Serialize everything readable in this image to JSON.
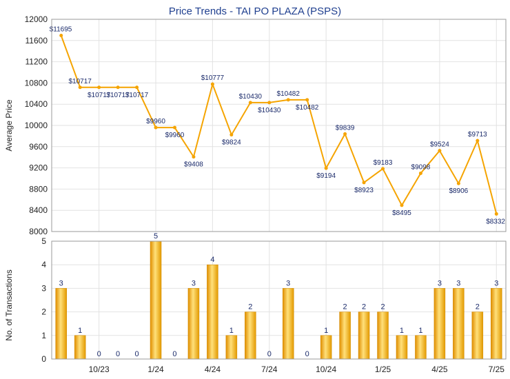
{
  "chart_data": [
    {
      "type": "line",
      "title": "Price Trends - TAI PO PLAZA (PSPS)",
      "ylabel": "Average Price",
      "ylim": [
        8000,
        12000
      ],
      "yticks": [
        8000,
        8400,
        8800,
        9200,
        9600,
        10000,
        10400,
        10800,
        11200,
        11600,
        12000
      ],
      "series": [
        {
          "values": [
            11695,
            10717,
            10717,
            10717,
            10717,
            9960,
            9960,
            9408,
            10777,
            9824,
            10430,
            10430,
            10482,
            10482,
            9194,
            9839,
            8923,
            9183,
            8495,
            9098,
            9524,
            8906,
            9713,
            8332
          ],
          "labels": [
            "$11695",
            "$10717",
            "$10717",
            "$10717",
            "$10717",
            "$9960",
            "$9960",
            "$9408",
            "$10777",
            "$9824",
            "$10430",
            "$10430",
            "$10482",
            "$10482",
            "$9194",
            "$9839",
            "$8923",
            "$9183",
            "$8495",
            "$9098",
            "$9524",
            "$8906",
            "$9713",
            "$8332"
          ],
          "color": "#f5a400"
        }
      ]
    },
    {
      "type": "bar",
      "ylabel": "No. of Transactions",
      "ylim": [
        0,
        5
      ],
      "yticks": [
        0,
        1,
        2,
        3,
        4,
        5
      ],
      "values": [
        3,
        1,
        0,
        0,
        0,
        5,
        0,
        3,
        4,
        1,
        2,
        0,
        3,
        0,
        1,
        2,
        2,
        2,
        1,
        1,
        3,
        3,
        2,
        3
      ],
      "xticks": [
        "10/23",
        "1/24",
        "4/24",
        "7/24",
        "10/24",
        "1/25",
        "4/25",
        "7/25"
      ],
      "color": "#f5a400"
    }
  ]
}
